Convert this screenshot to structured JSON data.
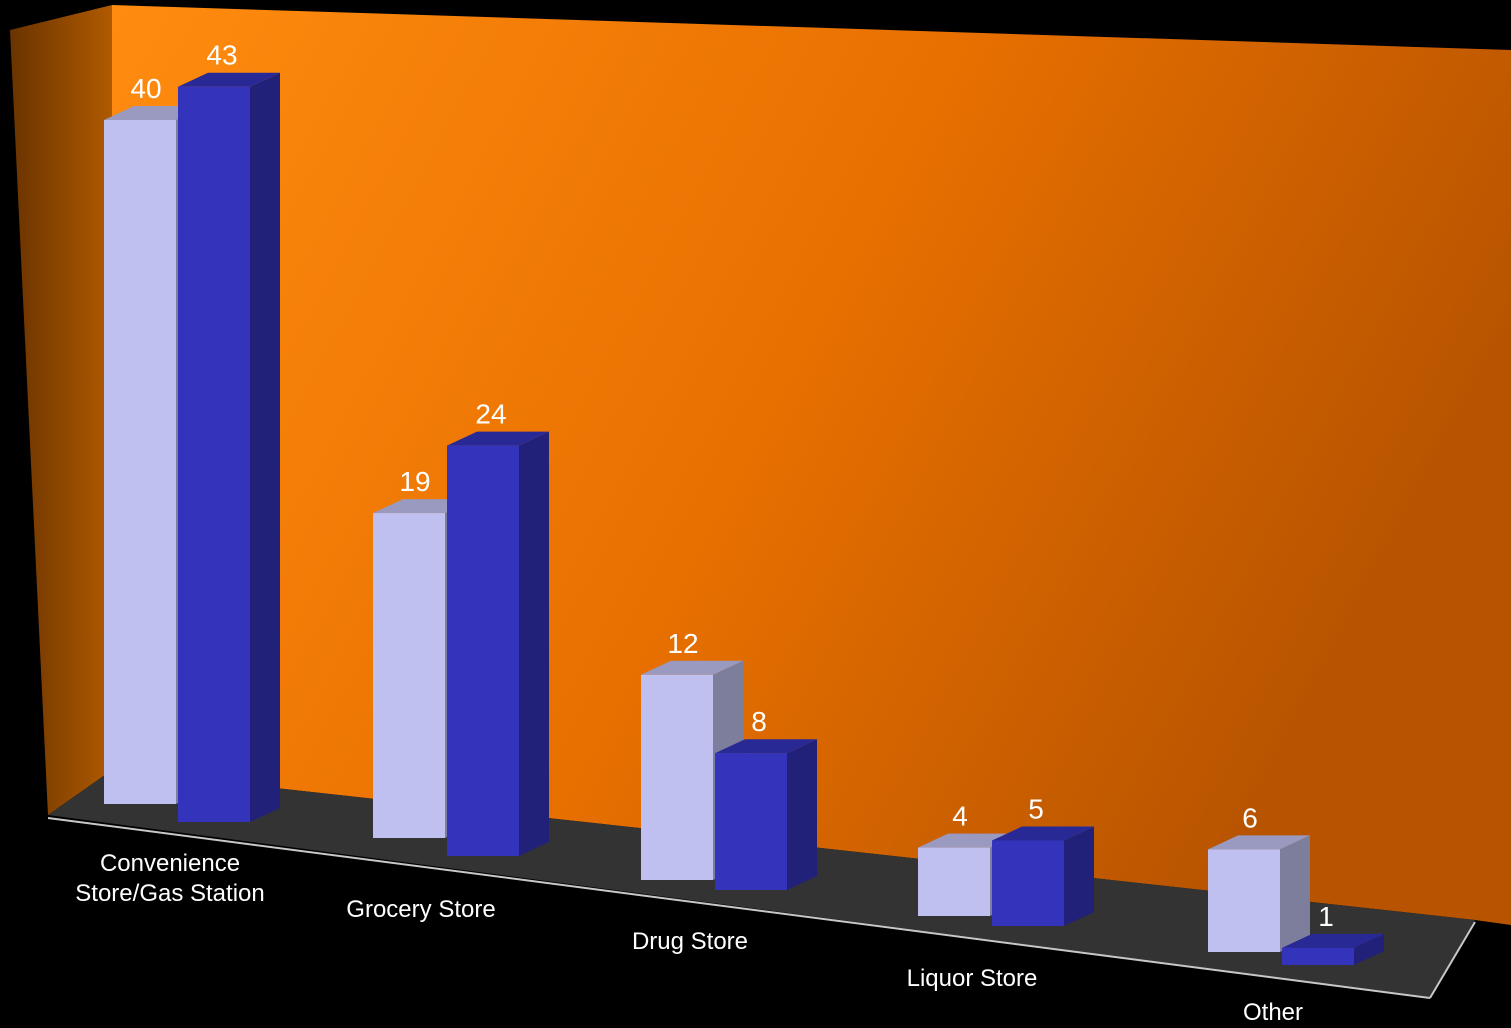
{
  "chart_data": {
    "type": "bar",
    "categories": [
      [
        "Convenience",
        "Store/Gas Station"
      ],
      [
        "Grocery Store"
      ],
      [
        "Drug Store"
      ],
      [
        "Liquor Store"
      ],
      [
        "Other"
      ]
    ],
    "series": [
      {
        "values": [
          40,
          19,
          12,
          4,
          6
        ],
        "color": "#c0c0f0"
      },
      {
        "values": [
          43,
          24,
          8,
          5,
          1
        ],
        "color": "#3333bb"
      }
    ],
    "ylim": [
      0,
      45
    ],
    "grid": false,
    "legend": "none",
    "style": {
      "background": "#000000",
      "wall_color": "#f08000",
      "floor_color": "#333333",
      "three_d": true
    }
  }
}
